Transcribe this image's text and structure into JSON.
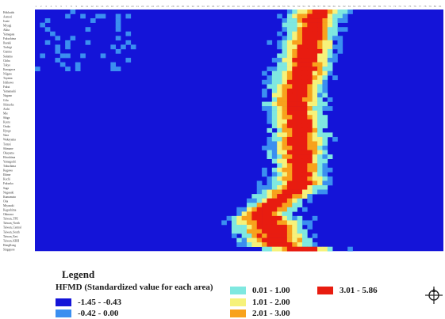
{
  "chart_data": {
    "type": "heatmap",
    "title": "",
    "xlabel": "",
    "ylabel": "",
    "n_columns": 81,
    "row_labels": [
      "Hokkaido",
      "Aomori",
      "Iwate",
      "Miyagi",
      "Akita",
      "Yamagata",
      "Fukushima",
      "Ibaraki",
      "Tochigi",
      "Gunma",
      "Saitama",
      "Chiba",
      "Tokyo",
      "Kanagawa",
      "Niigata",
      "Toyama",
      "Ishikawa",
      "Fukui",
      "Yamanashi",
      "Nagano",
      "Gifu",
      "Shizuoka",
      "Aichi",
      "Mie",
      "Shiga",
      "Kyoto",
      "Osaka",
      "Hyogo",
      "Nara",
      "Wakayama",
      "Tottori",
      "Shimane",
      "Okayama",
      "Hiroshima",
      "Yamaguchi",
      "Tokushima",
      "Kagawa",
      "Ehime",
      "Kochi",
      "Fukuoka",
      "Saga",
      "Nagasaki",
      "Kumamoto",
      "Oita",
      "Miyazaki",
      "Kagoshima",
      "Okinawa",
      "Taiwan_TPE",
      "Taiwan_North",
      "Taiwan_Central",
      "Taiwan_South",
      "Taiwan_East",
      "Taiwan_KHH",
      "HongKong",
      "Singapore"
    ],
    "color_classes": [
      {
        "range": "-1.45 - -0.43",
        "color": "#1414d8"
      },
      {
        "range": "-0.42 - 0.00",
        "color": "#3b8ff0"
      },
      {
        "range": "0.01 - 1.00",
        "color": "#7fe8e0"
      },
      {
        "range": "1.01 - 2.00",
        "color": "#f6f27a"
      },
      {
        "range": "2.01 - 3.00",
        "color": "#f8a21c"
      },
      {
        "range": "3.01 - 5.86",
        "color": "#e81c10"
      }
    ],
    "peak_profile": [
      {
        "row": "Hokkaido",
        "peak_col": 56,
        "spread": 3
      },
      {
        "row": "Aomori",
        "peak_col": 55,
        "spread": 3
      },
      {
        "row": "Tokyo",
        "peak_col": 53,
        "spread": 3
      },
      {
        "row": "Shizuoka",
        "peak_col": 51,
        "spread": 3
      },
      {
        "row": "Hyogo",
        "peak_col": 52,
        "spread": 3
      },
      {
        "row": "Fukuoka",
        "peak_col": 52,
        "spread": 3
      },
      {
        "row": "Okinawa",
        "peak_col": 45,
        "spread": 3
      },
      {
        "row": "Taiwan_TPE",
        "peak_col": 45,
        "spread": 4
      },
      {
        "row": "HongKong",
        "peak_col": 48,
        "spread": 4
      },
      {
        "row": "Singapore",
        "peak_col": 52,
        "spread": 4
      }
    ],
    "legend_position": "bottom"
  },
  "legend": {
    "title": "Legend",
    "subtitle": "HFMD (Standardized value for each area)",
    "items": [
      {
        "label": "-1.45 - -0.43",
        "color": "#1414d8"
      },
      {
        "label": "-0.42 - 0.00",
        "color": "#3b8ff0"
      },
      {
        "label": "0.01 - 1.00",
        "color": "#7fe8e0"
      },
      {
        "label": "1.01 - 2.00",
        "color": "#f6f27a"
      },
      {
        "label": "2.01 - 3.00",
        "color": "#f8a21c"
      },
      {
        "label": "3.01 - 5.86",
        "color": "#e81c10"
      }
    ]
  },
  "icons": {
    "compass": "compass-icon"
  }
}
